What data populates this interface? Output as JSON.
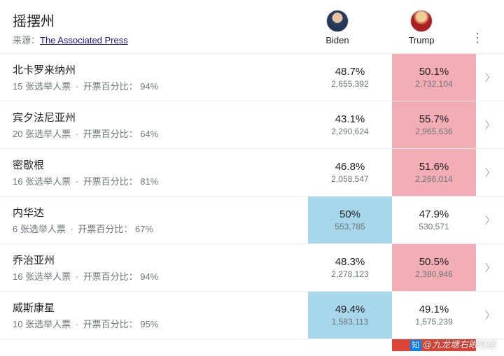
{
  "header": {
    "title": "摇摆州",
    "source_label": "来源：",
    "source_link_text": "The Associated Press"
  },
  "candidates": {
    "biden": {
      "name": "Biden"
    },
    "trump": {
      "name": "Trump"
    }
  },
  "subline": {
    "votes_suffix": " 张选举人票",
    "separator": "·",
    "count_label": "开票百分比："
  },
  "colors": {
    "win_blue": "#a6d7ea",
    "win_red": "#f2aeb4",
    "solid_red": "#db4437",
    "link": "#1a0dab",
    "muted": "#70757a",
    "border": "#ebebeb"
  },
  "states": [
    {
      "name": "北卡罗来纳州",
      "ev": "15",
      "reporting": "94%",
      "biden": {
        "pct": "48.7%",
        "votes": "2,655,392",
        "winning": false
      },
      "trump": {
        "pct": "50.1%",
        "votes": "2,732,104",
        "winning": true
      }
    },
    {
      "name": "宾夕法尼亚州",
      "ev": "20",
      "reporting": "64%",
      "biden": {
        "pct": "43.1%",
        "votes": "2,290,624",
        "winning": false
      },
      "trump": {
        "pct": "55.7%",
        "votes": "2,965,636",
        "winning": true
      }
    },
    {
      "name": "密歇根",
      "ev": "16",
      "reporting": "81%",
      "biden": {
        "pct": "46.8%",
        "votes": "2,058,547",
        "winning": false
      },
      "trump": {
        "pct": "51.6%",
        "votes": "2,266,014",
        "winning": true
      }
    },
    {
      "name": "内华达",
      "ev": "6",
      "reporting": "67%",
      "biden": {
        "pct": "50%",
        "votes": "553,785",
        "winning": true
      },
      "trump": {
        "pct": "47.9%",
        "votes": "530,571",
        "winning": false
      }
    },
    {
      "name": "乔治亚州",
      "ev": "16",
      "reporting": "94%",
      "biden": {
        "pct": "48.3%",
        "votes": "2,278,123",
        "winning": false
      },
      "trump": {
        "pct": "50.5%",
        "votes": "2,380,946",
        "winning": true
      }
    },
    {
      "name": "威斯康星",
      "ev": "10",
      "reporting": "95%",
      "biden": {
        "pct": "49.4%",
        "votes": "1,583,113",
        "winning": true
      },
      "trump": {
        "pct": "49.1%",
        "votes": "1,575,239",
        "winning": false
      }
    }
  ],
  "watermark": "@九龙塘右眼财迷"
}
